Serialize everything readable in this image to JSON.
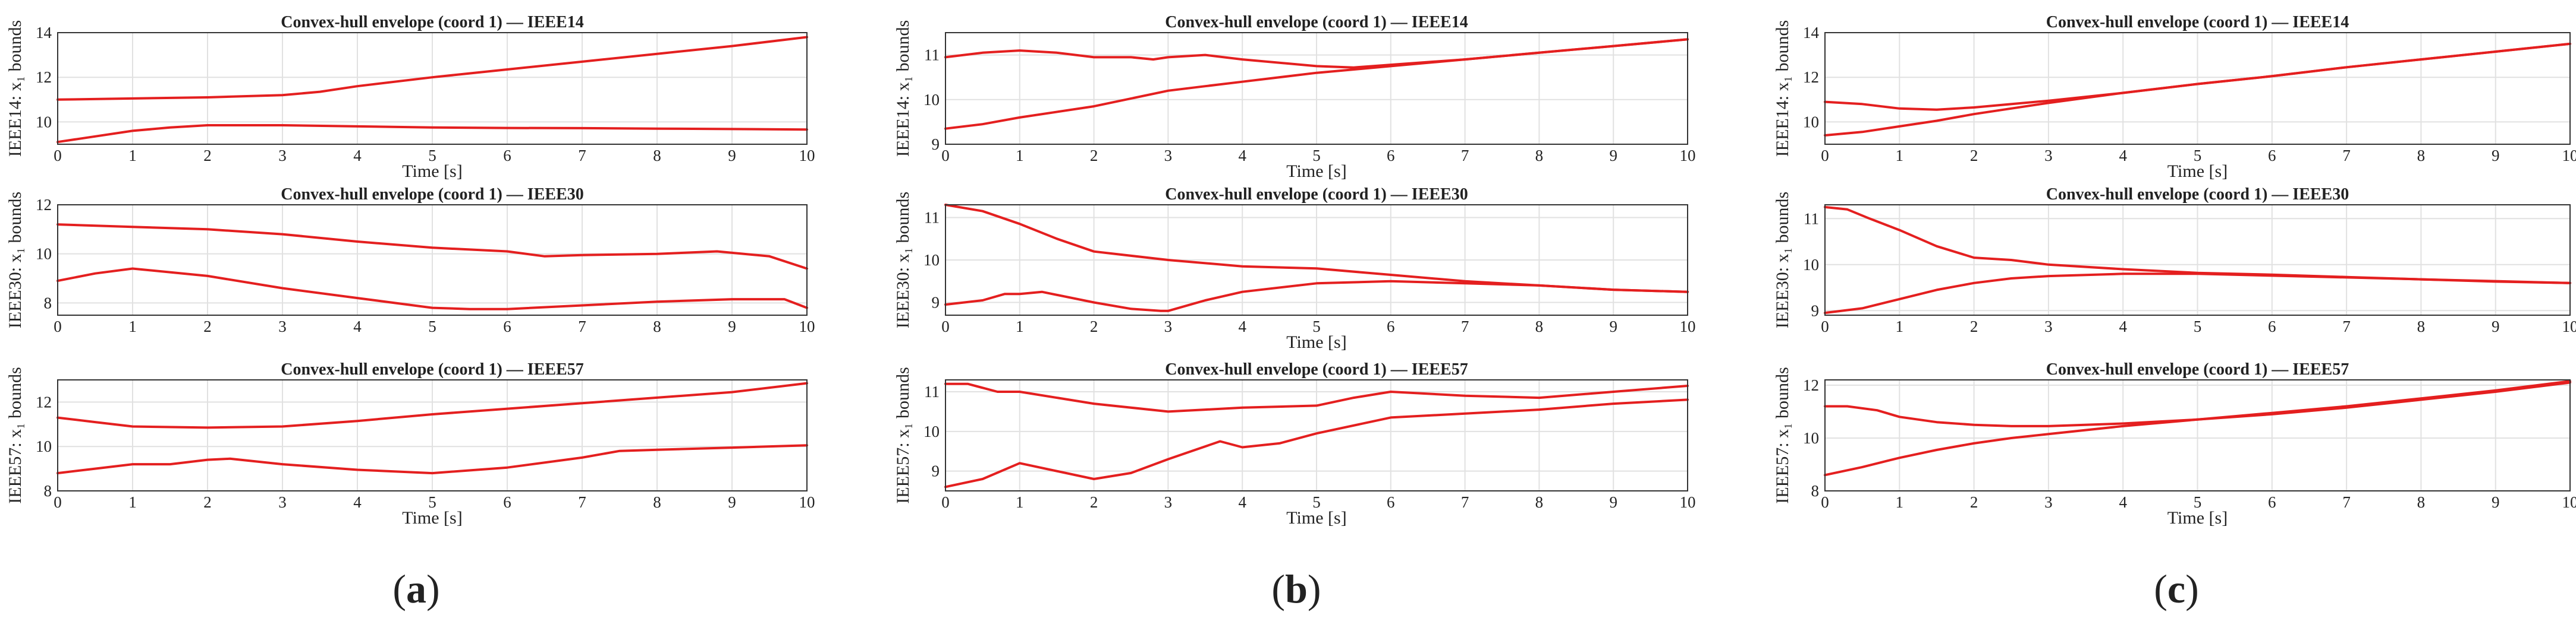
{
  "figure": {
    "sublabels": [
      "(a)",
      "(b)",
      "(c)"
    ]
  },
  "chart_data": [
    {
      "type": "line",
      "column": 0,
      "row": 0,
      "title": "Convex-hull envelope (coord 1) — IEEE14",
      "xlabel": "Time [s]",
      "ylabel": "IEEE14: x₁ bounds",
      "xlim": [
        0,
        10
      ],
      "ylim": [
        9,
        14
      ],
      "yticks": [
        10,
        12,
        14
      ],
      "xticks": [
        0,
        1,
        2,
        3,
        4,
        5,
        6,
        7,
        8,
        9,
        10
      ],
      "grid": true,
      "series": [
        {
          "x": [
            0,
            1,
            2,
            3,
            3.5,
            4,
            5,
            6,
            7,
            8,
            9,
            10
          ],
          "values": [
            11.0,
            11.05,
            11.1,
            11.2,
            11.35,
            11.6,
            12.0,
            12.35,
            12.7,
            13.05,
            13.4,
            13.8
          ]
        },
        {
          "x": [
            0,
            0.5,
            1,
            1.5,
            2,
            3,
            4,
            5,
            6,
            7,
            8,
            9,
            10
          ],
          "values": [
            9.1,
            9.35,
            9.6,
            9.75,
            9.85,
            9.85,
            9.8,
            9.75,
            9.73,
            9.72,
            9.7,
            9.68,
            9.66
          ]
        }
      ]
    },
    {
      "type": "line",
      "column": 0,
      "row": 1,
      "title": "Convex-hull envelope (coord 1) — IEEE30",
      "xlabel": "",
      "ylabel": "IEEE30: x₁ bounds",
      "xlim": [
        0,
        10
      ],
      "ylim": [
        7.5,
        12
      ],
      "yticks": [
        8,
        10,
        12
      ],
      "xticks": [
        0,
        1,
        2,
        3,
        4,
        5,
        6,
        7,
        8,
        9,
        10
      ],
      "grid": true,
      "series": [
        {
          "x": [
            0,
            1,
            2,
            3,
            4,
            5,
            6,
            6.5,
            7,
            8,
            8.8,
            9.5,
            10
          ],
          "values": [
            11.2,
            11.1,
            11.0,
            10.8,
            10.5,
            10.25,
            10.1,
            9.9,
            9.95,
            10.0,
            10.1,
            9.9,
            9.4
          ]
        },
        {
          "x": [
            0,
            0.5,
            1,
            2,
            3,
            4,
            5,
            5.5,
            6,
            7,
            8,
            9,
            9.7,
            10
          ],
          "values": [
            8.9,
            9.2,
            9.4,
            9.1,
            8.6,
            8.2,
            7.8,
            7.75,
            7.75,
            7.9,
            8.05,
            8.15,
            8.15,
            7.8
          ]
        }
      ]
    },
    {
      "type": "line",
      "column": 0,
      "row": 2,
      "title": "Convex-hull envelope (coord 1) — IEEE57",
      "xlabel": "Time [s]",
      "ylabel": "IEEE57: x₁ bounds",
      "xlim": [
        0,
        10
      ],
      "ylim": [
        8,
        13
      ],
      "yticks": [
        8,
        10,
        12
      ],
      "xticks": [
        0,
        1,
        2,
        3,
        4,
        5,
        6,
        7,
        8,
        9,
        10
      ],
      "grid": true,
      "series": [
        {
          "x": [
            0,
            0.5,
            1,
            2,
            3,
            4,
            5,
            6,
            7,
            8,
            9,
            10
          ],
          "values": [
            11.3,
            11.1,
            10.9,
            10.85,
            10.9,
            11.15,
            11.45,
            11.7,
            11.95,
            12.2,
            12.45,
            12.85
          ]
        },
        {
          "x": [
            0,
            0.5,
            1,
            1.5,
            2,
            2.3,
            3,
            4,
            5,
            6,
            7,
            7.5,
            8,
            9,
            10
          ],
          "values": [
            8.8,
            9.0,
            9.2,
            9.2,
            9.4,
            9.45,
            9.2,
            8.95,
            8.8,
            9.05,
            9.5,
            9.8,
            9.85,
            9.95,
            10.05
          ]
        }
      ]
    },
    {
      "type": "line",
      "column": 1,
      "row": 0,
      "title": "Convex-hull envelope (coord 1) — IEEE14",
      "xlabel": "Time [s]",
      "ylabel": "IEEE14: x₁ bounds",
      "xlim": [
        0,
        10
      ],
      "ylim": [
        9,
        11.5
      ],
      "yticks": [
        9,
        10,
        11
      ],
      "xticks": [
        0,
        1,
        2,
        3,
        4,
        5,
        6,
        7,
        8,
        9,
        10
      ],
      "grid": true,
      "series": [
        {
          "x": [
            0,
            0.5,
            1,
            1.5,
            2,
            2.5,
            2.8,
            3,
            3.5,
            4,
            5,
            5.5,
            6,
            7,
            8,
            9,
            10
          ],
          "values": [
            10.95,
            11.05,
            11.1,
            11.05,
            10.95,
            10.95,
            10.9,
            10.95,
            11.0,
            10.9,
            10.75,
            10.72,
            10.78,
            10.9,
            11.05,
            11.2,
            11.35
          ]
        },
        {
          "x": [
            0,
            0.5,
            1,
            2,
            3,
            3.5,
            4,
            5,
            6,
            7,
            8,
            9,
            10
          ],
          "values": [
            9.35,
            9.45,
            9.6,
            9.85,
            10.2,
            10.3,
            10.4,
            10.6,
            10.75,
            10.9,
            11.05,
            11.2,
            11.35
          ]
        }
      ]
    },
    {
      "type": "line",
      "column": 1,
      "row": 1,
      "title": "Convex-hull envelope (coord 1) — IEEE30",
      "xlabel": "Time [s]",
      "ylabel": "IEEE30: x₁ bounds",
      "xlim": [
        0,
        10
      ],
      "ylim": [
        8.7,
        11.3
      ],
      "yticks": [
        9,
        10,
        11
      ],
      "xticks": [
        0,
        1,
        2,
        3,
        4,
        5,
        6,
        7,
        8,
        9,
        10
      ],
      "grid": true,
      "series": [
        {
          "x": [
            0,
            0.5,
            1,
            1.5,
            2,
            3,
            4,
            5,
            6,
            7,
            8,
            9,
            10
          ],
          "values": [
            11.3,
            11.15,
            10.85,
            10.5,
            10.2,
            10.0,
            9.85,
            9.8,
            9.65,
            9.5,
            9.4,
            9.3,
            9.25
          ]
        },
        {
          "x": [
            0,
            0.5,
            0.8,
            1,
            1.3,
            2,
            2.5,
            2.9,
            3,
            3.5,
            4,
            5,
            6,
            7,
            8,
            9,
            10
          ],
          "values": [
            8.95,
            9.05,
            9.2,
            9.2,
            9.25,
            9.0,
            8.85,
            8.8,
            8.8,
            9.05,
            9.25,
            9.45,
            9.5,
            9.45,
            9.4,
            9.3,
            9.25
          ]
        }
      ]
    },
    {
      "type": "line",
      "column": 1,
      "row": 2,
      "title": "Convex-hull envelope (coord 1) — IEEE57",
      "xlabel": "Time [s]",
      "ylabel": "IEEE57: x₁ bounds",
      "xlim": [
        0,
        10
      ],
      "ylim": [
        8.5,
        11.3
      ],
      "yticks": [
        9,
        10,
        11
      ],
      "xticks": [
        0,
        1,
        2,
        3,
        4,
        5,
        6,
        7,
        8,
        9,
        10
      ],
      "grid": true,
      "series": [
        {
          "x": [
            0,
            0.3,
            0.7,
            1,
            2,
            3,
            3.5,
            4,
            5,
            5.5,
            6,
            7,
            8,
            9,
            10
          ],
          "values": [
            11.2,
            11.2,
            11.0,
            11.0,
            10.7,
            10.5,
            10.55,
            10.6,
            10.65,
            10.85,
            11.0,
            10.9,
            10.85,
            11.0,
            11.15
          ]
        },
        {
          "x": [
            0,
            0.5,
            1,
            2,
            2.5,
            3,
            3.7,
            4,
            4.5,
            5,
            6,
            7,
            8,
            9,
            10
          ],
          "values": [
            8.6,
            8.8,
            9.2,
            8.8,
            8.95,
            9.3,
            9.75,
            9.6,
            9.7,
            9.95,
            10.35,
            10.45,
            10.55,
            10.7,
            10.8
          ]
        }
      ]
    },
    {
      "type": "line",
      "column": 2,
      "row": 0,
      "title": "Convex-hull envelope (coord 1) — IEEE14",
      "xlabel": "Time [s]",
      "ylabel": "IEEE14: x₁ bounds",
      "xlim": [
        0,
        10
      ],
      "ylim": [
        9,
        14
      ],
      "yticks": [
        10,
        12,
        14
      ],
      "xticks": [
        0,
        1,
        2,
        3,
        4,
        5,
        6,
        7,
        8,
        9,
        10
      ],
      "grid": true,
      "series": [
        {
          "x": [
            0,
            0.5,
            1,
            1.5,
            2,
            3,
            4,
            5,
            6,
            7,
            8,
            9,
            10
          ],
          "values": [
            10.9,
            10.8,
            10.6,
            10.55,
            10.65,
            10.95,
            11.3,
            11.7,
            12.05,
            12.45,
            12.8,
            13.15,
            13.5
          ]
        },
        {
          "x": [
            0,
            0.5,
            1,
            1.5,
            2,
            3,
            4,
            5,
            6,
            7,
            8,
            9,
            10
          ],
          "values": [
            9.4,
            9.55,
            9.8,
            10.05,
            10.35,
            10.85,
            11.3,
            11.7,
            12.05,
            12.45,
            12.8,
            13.15,
            13.5
          ]
        }
      ]
    },
    {
      "type": "line",
      "column": 2,
      "row": 1,
      "title": "Convex-hull envelope (coord 1) — IEEE30",
      "xlabel": "",
      "ylabel": "IEEE30: x₁ bounds",
      "xlim": [
        0,
        10
      ],
      "ylim": [
        8.9,
        11.3
      ],
      "yticks": [
        9,
        10,
        11
      ],
      "xticks": [
        0,
        1,
        2,
        3,
        4,
        5,
        6,
        7,
        8,
        9,
        10
      ],
      "grid": true,
      "series": [
        {
          "x": [
            0,
            0.3,
            0.6,
            1,
            1.5,
            2,
            2.5,
            3,
            4,
            5,
            6,
            7,
            8,
            9,
            10
          ],
          "values": [
            11.25,
            11.2,
            11.0,
            10.75,
            10.4,
            10.15,
            10.1,
            10.0,
            9.9,
            9.82,
            9.78,
            9.73,
            9.68,
            9.63,
            9.6
          ]
        },
        {
          "x": [
            0,
            0.5,
            1,
            1.5,
            2,
            2.5,
            3,
            4,
            5,
            6,
            7,
            8,
            9,
            10
          ],
          "values": [
            8.95,
            9.05,
            9.25,
            9.45,
            9.6,
            9.7,
            9.75,
            9.8,
            9.8,
            9.76,
            9.72,
            9.68,
            9.64,
            9.6
          ]
        }
      ]
    },
    {
      "type": "line",
      "column": 2,
      "row": 2,
      "title": "Convex-hull envelope (coord 1) — IEEE57",
      "xlabel": "Time [s]",
      "ylabel": "IEEE57: x₁ bounds",
      "xlim": [
        0,
        10
      ],
      "ylim": [
        8,
        12.2
      ],
      "yticks": [
        8,
        10,
        12
      ],
      "xticks": [
        0,
        1,
        2,
        3,
        4,
        5,
        6,
        7,
        8,
        9,
        10
      ],
      "grid": true,
      "series": [
        {
          "x": [
            0,
            0.3,
            0.7,
            1,
            1.5,
            2,
            2.5,
            3,
            4,
            5,
            6,
            7,
            8,
            9,
            10
          ],
          "values": [
            11.2,
            11.2,
            11.05,
            10.8,
            10.6,
            10.5,
            10.45,
            10.45,
            10.55,
            10.7,
            10.9,
            11.15,
            11.45,
            11.75,
            12.1
          ]
        },
        {
          "x": [
            0,
            0.5,
            1,
            1.5,
            2,
            2.5,
            3,
            4,
            5,
            6,
            7,
            8,
            9,
            10
          ],
          "values": [
            8.6,
            8.9,
            9.25,
            9.55,
            9.8,
            10.0,
            10.15,
            10.45,
            10.7,
            10.95,
            11.2,
            11.5,
            11.8,
            12.15
          ]
        }
      ]
    }
  ]
}
